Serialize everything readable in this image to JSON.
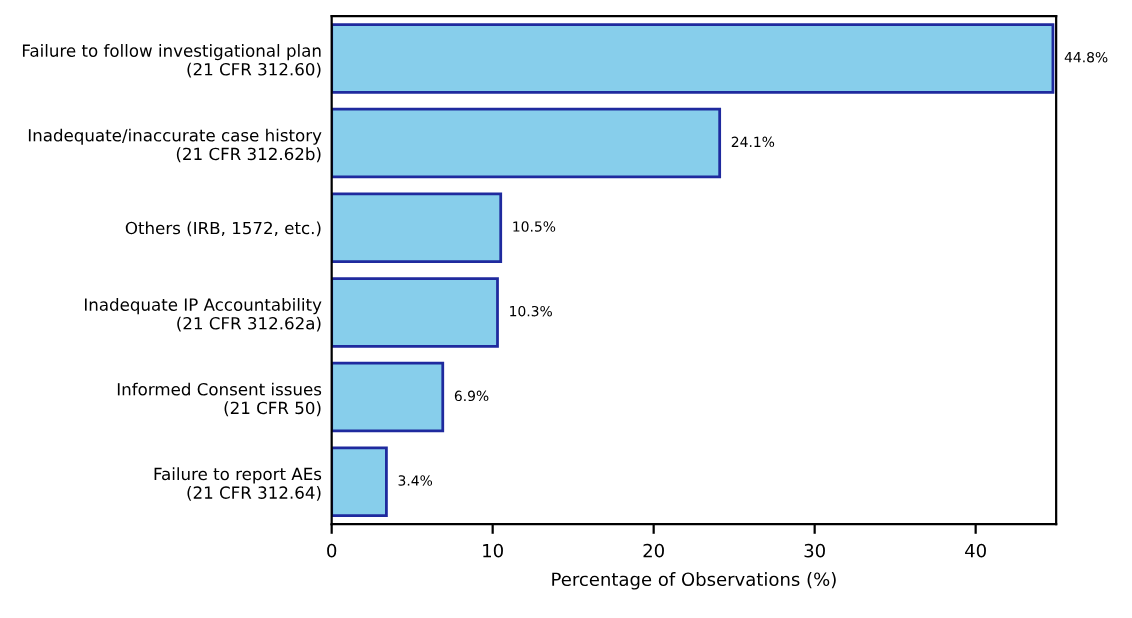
{
  "chart_data": {
    "type": "bar",
    "orientation": "horizontal",
    "xlabel": "Percentage of Observations (%)",
    "categories": [
      "Failure to follow investigational plan\n(21 CFR 312.60)",
      "Inadequate/inaccurate case history\n(21 CFR 312.62b)",
      "Others (IRB, 1572, etc.)",
      "Inadequate IP Accountability\n(21 CFR 312.62a)",
      "Informed Consent issues\n(21 CFR 50)",
      "Failure to report AEs\n(21 CFR 312.64)"
    ],
    "values": [
      44.8,
      24.1,
      10.5,
      10.3,
      6.9,
      3.4
    ],
    "value_labels": [
      "44.8%",
      "24.1%",
      "10.5%",
      "10.3%",
      "6.9%",
      "3.4%"
    ],
    "color": "#87ceeb",
    "xlim": [
      0,
      45
    ],
    "xticks": [
      0,
      10,
      20,
      30,
      40
    ],
    "grid": false
  }
}
